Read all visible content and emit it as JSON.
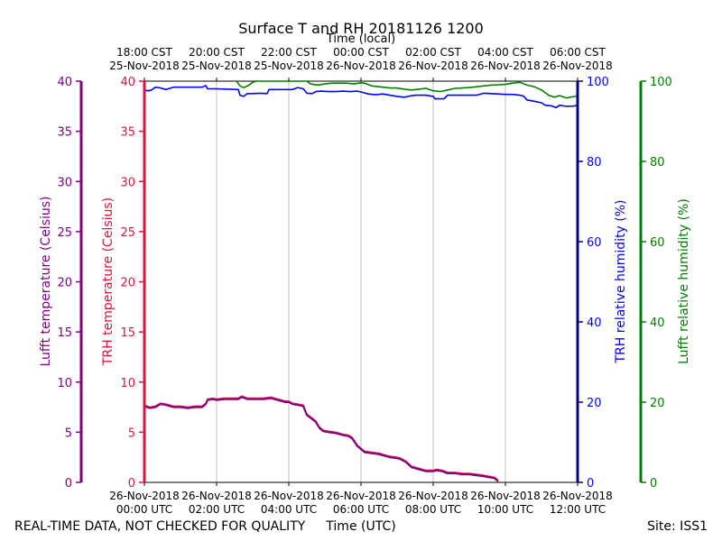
{
  "chart_data": {
    "type": "line",
    "title": "Surface T and RH 20181126 1200",
    "top_axis_label": "Time (local)",
    "bottom_axis_label": "Time (UTC)",
    "footer_left": "REAL-TIME DATA, NOT CHECKED FOR QUALITY",
    "footer_right": "Site: ISS1",
    "colors": {
      "lufft_temp": "#800080",
      "trh_temp": "#dc143c",
      "trh_rh": "#0000ff",
      "lufft_rh": "#008000",
      "lufft_rh_axis": "#008000",
      "trh_rh_axis": "#00008b"
    },
    "x_range_hours": [
      0,
      12
    ],
    "utc_ticks": [
      {
        "hour": 0,
        "date": "26-Nov-2018",
        "time": "00:00 UTC"
      },
      {
        "hour": 2,
        "date": "26-Nov-2018",
        "time": "02:00 UTC"
      },
      {
        "hour": 4,
        "date": "26-Nov-2018",
        "time": "04:00 UTC"
      },
      {
        "hour": 6,
        "date": "26-Nov-2018",
        "time": "06:00 UTC"
      },
      {
        "hour": 8,
        "date": "26-Nov-2018",
        "time": "08:00 UTC"
      },
      {
        "hour": 10,
        "date": "26-Nov-2018",
        "time": "10:00 UTC"
      },
      {
        "hour": 12,
        "date": "26-Nov-2018",
        "time": "12:00 UTC"
      }
    ],
    "local_ticks": [
      {
        "hour": 0,
        "time": "18:00 CST",
        "date": "25-Nov-2018"
      },
      {
        "hour": 2,
        "time": "20:00 CST",
        "date": "25-Nov-2018"
      },
      {
        "hour": 4,
        "time": "22:00 CST",
        "date": "25-Nov-2018"
      },
      {
        "hour": 6,
        "time": "00:00 CST",
        "date": "26-Nov-2018"
      },
      {
        "hour": 8,
        "time": "02:00 CST",
        "date": "26-Nov-2018"
      },
      {
        "hour": 10,
        "time": "04:00 CST",
        "date": "26-Nov-2018"
      },
      {
        "hour": 12,
        "time": "06:00 CST",
        "date": "26-Nov-2018"
      }
    ],
    "temp_axis": {
      "ylim": [
        0,
        40
      ],
      "ticks": [
        "0",
        "5",
        "10",
        "15",
        "20",
        "25",
        "30",
        "35",
        "40"
      ]
    },
    "rh_axis": {
      "ylim": [
        0,
        100
      ],
      "ticks": [
        "0",
        "20",
        "40",
        "60",
        "80",
        "100"
      ]
    },
    "axes_labels": {
      "lufft_temp": "Lufft temperature (Celsius)",
      "trh_temp": "TRH temperature (Celsius)",
      "trh_rh": "TRH relative humidity (%)",
      "lufft_rh": "Lufft relative humidity (%)"
    },
    "series": [
      {
        "name": "Lufft temperature",
        "key": "lufft_temp",
        "axis": "temp",
        "points": [
          [
            0,
            7.6
          ],
          [
            0.15,
            7.4
          ],
          [
            0.3,
            7.5
          ],
          [
            0.45,
            7.8
          ],
          [
            0.6,
            7.7
          ],
          [
            0.8,
            7.5
          ],
          [
            1.0,
            7.5
          ],
          [
            1.2,
            7.4
          ],
          [
            1.4,
            7.5
          ],
          [
            1.6,
            7.5
          ],
          [
            1.7,
            7.8
          ],
          [
            1.75,
            8.2
          ],
          [
            1.9,
            8.3
          ],
          [
            2.0,
            8.2
          ],
          [
            2.2,
            8.3
          ],
          [
            2.4,
            8.3
          ],
          [
            2.6,
            8.3
          ],
          [
            2.7,
            8.5
          ],
          [
            2.85,
            8.3
          ],
          [
            3.0,
            8.3
          ],
          [
            3.3,
            8.3
          ],
          [
            3.5,
            8.4
          ],
          [
            3.7,
            8.2
          ],
          [
            3.9,
            8.0
          ],
          [
            4.0,
            8.0
          ],
          [
            4.1,
            7.8
          ],
          [
            4.25,
            7.7
          ],
          [
            4.4,
            7.6
          ],
          [
            4.5,
            6.7
          ],
          [
            4.65,
            6.3
          ],
          [
            4.75,
            6.0
          ],
          [
            4.85,
            5.4
          ],
          [
            4.95,
            5.1
          ],
          [
            5.1,
            5.0
          ],
          [
            5.3,
            4.9
          ],
          [
            5.5,
            4.7
          ],
          [
            5.65,
            4.6
          ],
          [
            5.75,
            4.4
          ],
          [
            5.9,
            3.6
          ],
          [
            6.0,
            3.3
          ],
          [
            6.1,
            3.0
          ],
          [
            6.3,
            2.9
          ],
          [
            6.5,
            2.8
          ],
          [
            6.6,
            2.7
          ],
          [
            6.8,
            2.5
          ],
          [
            7.0,
            2.4
          ],
          [
            7.1,
            2.3
          ],
          [
            7.25,
            2.0
          ],
          [
            7.4,
            1.5
          ],
          [
            7.6,
            1.3
          ],
          [
            7.8,
            1.1
          ],
          [
            8.0,
            1.1
          ],
          [
            8.1,
            1.2
          ],
          [
            8.25,
            1.1
          ],
          [
            8.4,
            0.9
          ],
          [
            8.6,
            0.9
          ],
          [
            8.8,
            0.8
          ],
          [
            9.0,
            0.8
          ],
          [
            9.2,
            0.7
          ],
          [
            9.4,
            0.6
          ],
          [
            9.55,
            0.5
          ],
          [
            9.7,
            0.4
          ],
          [
            9.8,
            0.1
          ]
        ]
      },
      {
        "name": "TRH temperature",
        "key": "trh_temp",
        "axis": "temp",
        "points": [
          [
            0,
            7.7
          ],
          [
            0.15,
            7.5
          ],
          [
            0.3,
            7.6
          ],
          [
            0.45,
            7.9
          ],
          [
            0.6,
            7.8
          ],
          [
            0.8,
            7.6
          ],
          [
            1.0,
            7.6
          ],
          [
            1.2,
            7.5
          ],
          [
            1.4,
            7.6
          ],
          [
            1.6,
            7.6
          ],
          [
            1.7,
            7.9
          ],
          [
            1.75,
            8.3
          ],
          [
            1.9,
            8.4
          ],
          [
            2.0,
            8.3
          ],
          [
            2.2,
            8.4
          ],
          [
            2.4,
            8.4
          ],
          [
            2.6,
            8.4
          ],
          [
            2.7,
            8.6
          ],
          [
            2.85,
            8.4
          ],
          [
            3.0,
            8.4
          ],
          [
            3.3,
            8.4
          ],
          [
            3.5,
            8.5
          ],
          [
            3.7,
            8.3
          ],
          [
            3.9,
            8.1
          ],
          [
            4.0,
            8.1
          ],
          [
            4.1,
            7.9
          ],
          [
            4.25,
            7.8
          ],
          [
            4.4,
            7.7
          ],
          [
            4.5,
            6.8
          ],
          [
            4.65,
            6.4
          ],
          [
            4.75,
            6.1
          ],
          [
            4.85,
            5.5
          ],
          [
            4.95,
            5.2
          ],
          [
            5.1,
            5.1
          ],
          [
            5.3,
            5.0
          ],
          [
            5.5,
            4.8
          ],
          [
            5.65,
            4.7
          ],
          [
            5.75,
            4.5
          ],
          [
            5.9,
            3.7
          ],
          [
            6.0,
            3.4
          ],
          [
            6.1,
            3.1
          ],
          [
            6.3,
            3.0
          ],
          [
            6.5,
            2.9
          ],
          [
            6.6,
            2.8
          ],
          [
            6.8,
            2.6
          ],
          [
            7.0,
            2.5
          ],
          [
            7.1,
            2.4
          ],
          [
            7.25,
            2.1
          ],
          [
            7.4,
            1.6
          ],
          [
            7.6,
            1.4
          ],
          [
            7.8,
            1.2
          ],
          [
            8.0,
            1.2
          ],
          [
            8.1,
            1.3
          ],
          [
            8.25,
            1.2
          ],
          [
            8.4,
            1.0
          ],
          [
            8.6,
            1.0
          ],
          [
            8.8,
            0.9
          ],
          [
            9.0,
            0.9
          ],
          [
            9.2,
            0.8
          ],
          [
            9.4,
            0.7
          ],
          [
            9.55,
            0.6
          ],
          [
            9.7,
            0.5
          ],
          [
            9.8,
            0.2
          ]
        ]
      },
      {
        "name": "TRH relative humidity",
        "key": "trh_rh",
        "axis": "rh",
        "points": [
          [
            0,
            97.7
          ],
          [
            0.1,
            97.6
          ],
          [
            0.2,
            97.8
          ],
          [
            0.3,
            98.5
          ],
          [
            0.45,
            98.3
          ],
          [
            0.6,
            97.9
          ],
          [
            0.8,
            98.5
          ],
          [
            1.0,
            98.5
          ],
          [
            1.2,
            98.5
          ],
          [
            1.4,
            98.5
          ],
          [
            1.6,
            98.5
          ],
          [
            1.7,
            98.9
          ],
          [
            1.75,
            98.1
          ],
          [
            2.0,
            98.1
          ],
          [
            2.3,
            98.0
          ],
          [
            2.6,
            97.9
          ],
          [
            2.65,
            96.5
          ],
          [
            2.75,
            96.2
          ],
          [
            2.85,
            96.9
          ],
          [
            3.0,
            96.9
          ],
          [
            3.2,
            97.0
          ],
          [
            3.4,
            96.9
          ],
          [
            3.45,
            97.9
          ],
          [
            3.6,
            97.9
          ],
          [
            3.9,
            97.9
          ],
          [
            4.0,
            97.9
          ],
          [
            4.1,
            97.9
          ],
          [
            4.25,
            98.4
          ],
          [
            4.4,
            98.1
          ],
          [
            4.5,
            97.0
          ],
          [
            4.65,
            96.9
          ],
          [
            4.75,
            97.4
          ],
          [
            4.9,
            97.5
          ],
          [
            5.1,
            97.4
          ],
          [
            5.3,
            97.4
          ],
          [
            5.5,
            97.5
          ],
          [
            5.7,
            97.4
          ],
          [
            5.9,
            97.5
          ],
          [
            6.05,
            97.2
          ],
          [
            6.2,
            96.8
          ],
          [
            6.4,
            96.6
          ],
          [
            6.6,
            96.8
          ],
          [
            6.8,
            96.5
          ],
          [
            7.0,
            96.2
          ],
          [
            7.2,
            96.0
          ],
          [
            7.35,
            96.3
          ],
          [
            7.5,
            96.5
          ],
          [
            7.8,
            96.5
          ],
          [
            8.0,
            96.2
          ],
          [
            8.05,
            95.6
          ],
          [
            8.3,
            95.6
          ],
          [
            8.4,
            96.5
          ],
          [
            8.6,
            96.5
          ],
          [
            9.0,
            96.5
          ],
          [
            9.2,
            96.5
          ],
          [
            9.4,
            97.0
          ],
          [
            9.6,
            96.9
          ],
          [
            9.8,
            96.8
          ],
          [
            10.0,
            96.7
          ],
          [
            10.2,
            96.7
          ],
          [
            10.4,
            96.5
          ],
          [
            10.5,
            96.3
          ],
          [
            10.6,
            95.3
          ],
          [
            10.8,
            95.0
          ],
          [
            11.0,
            94.6
          ],
          [
            11.1,
            94.0
          ],
          [
            11.3,
            93.8
          ],
          [
            11.4,
            93.4
          ],
          [
            11.5,
            94.0
          ],
          [
            11.7,
            93.7
          ],
          [
            11.9,
            93.8
          ],
          [
            12.0,
            94.0
          ]
        ]
      },
      {
        "name": "Lufft relative humidity",
        "key": "lufft_rh",
        "axis": "rh",
        "points": [
          [
            2.55,
            100
          ],
          [
            2.65,
            98.8
          ],
          [
            2.75,
            98.4
          ],
          [
            2.9,
            99.0
          ],
          [
            3.0,
            99.7
          ],
          [
            3.1,
            100
          ],
          [
            4.5,
            100
          ],
          [
            4.6,
            99.3
          ],
          [
            4.8,
            99.0
          ],
          [
            5.0,
            99.3
          ],
          [
            5.2,
            99.5
          ],
          [
            5.4,
            99.5
          ],
          [
            5.6,
            99.5
          ],
          [
            5.8,
            99.3
          ],
          [
            6.0,
            99.6
          ],
          [
            6.1,
            99.5
          ],
          [
            6.3,
            98.8
          ],
          [
            6.5,
            98.6
          ],
          [
            6.8,
            98.3
          ],
          [
            7.0,
            98.3
          ],
          [
            7.2,
            98.0
          ],
          [
            7.4,
            97.8
          ],
          [
            7.6,
            98.0
          ],
          [
            7.8,
            98.2
          ],
          [
            8.0,
            97.6
          ],
          [
            8.2,
            97.4
          ],
          [
            8.4,
            97.8
          ],
          [
            8.6,
            98.2
          ],
          [
            8.8,
            98.3
          ],
          [
            9.0,
            98.4
          ],
          [
            9.2,
            98.6
          ],
          [
            9.4,
            98.8
          ],
          [
            9.6,
            99.0
          ],
          [
            9.8,
            99.1
          ],
          [
            10.0,
            99.2
          ],
          [
            10.2,
            99.5
          ],
          [
            10.4,
            99.7
          ],
          [
            10.6,
            99.0
          ],
          [
            10.8,
            98.6
          ],
          [
            11.0,
            97.8
          ],
          [
            11.2,
            96.5
          ],
          [
            11.35,
            96.0
          ],
          [
            11.5,
            96.4
          ],
          [
            11.7,
            95.8
          ],
          [
            11.85,
            96.1
          ],
          [
            12.0,
            96.3
          ]
        ]
      }
    ]
  }
}
